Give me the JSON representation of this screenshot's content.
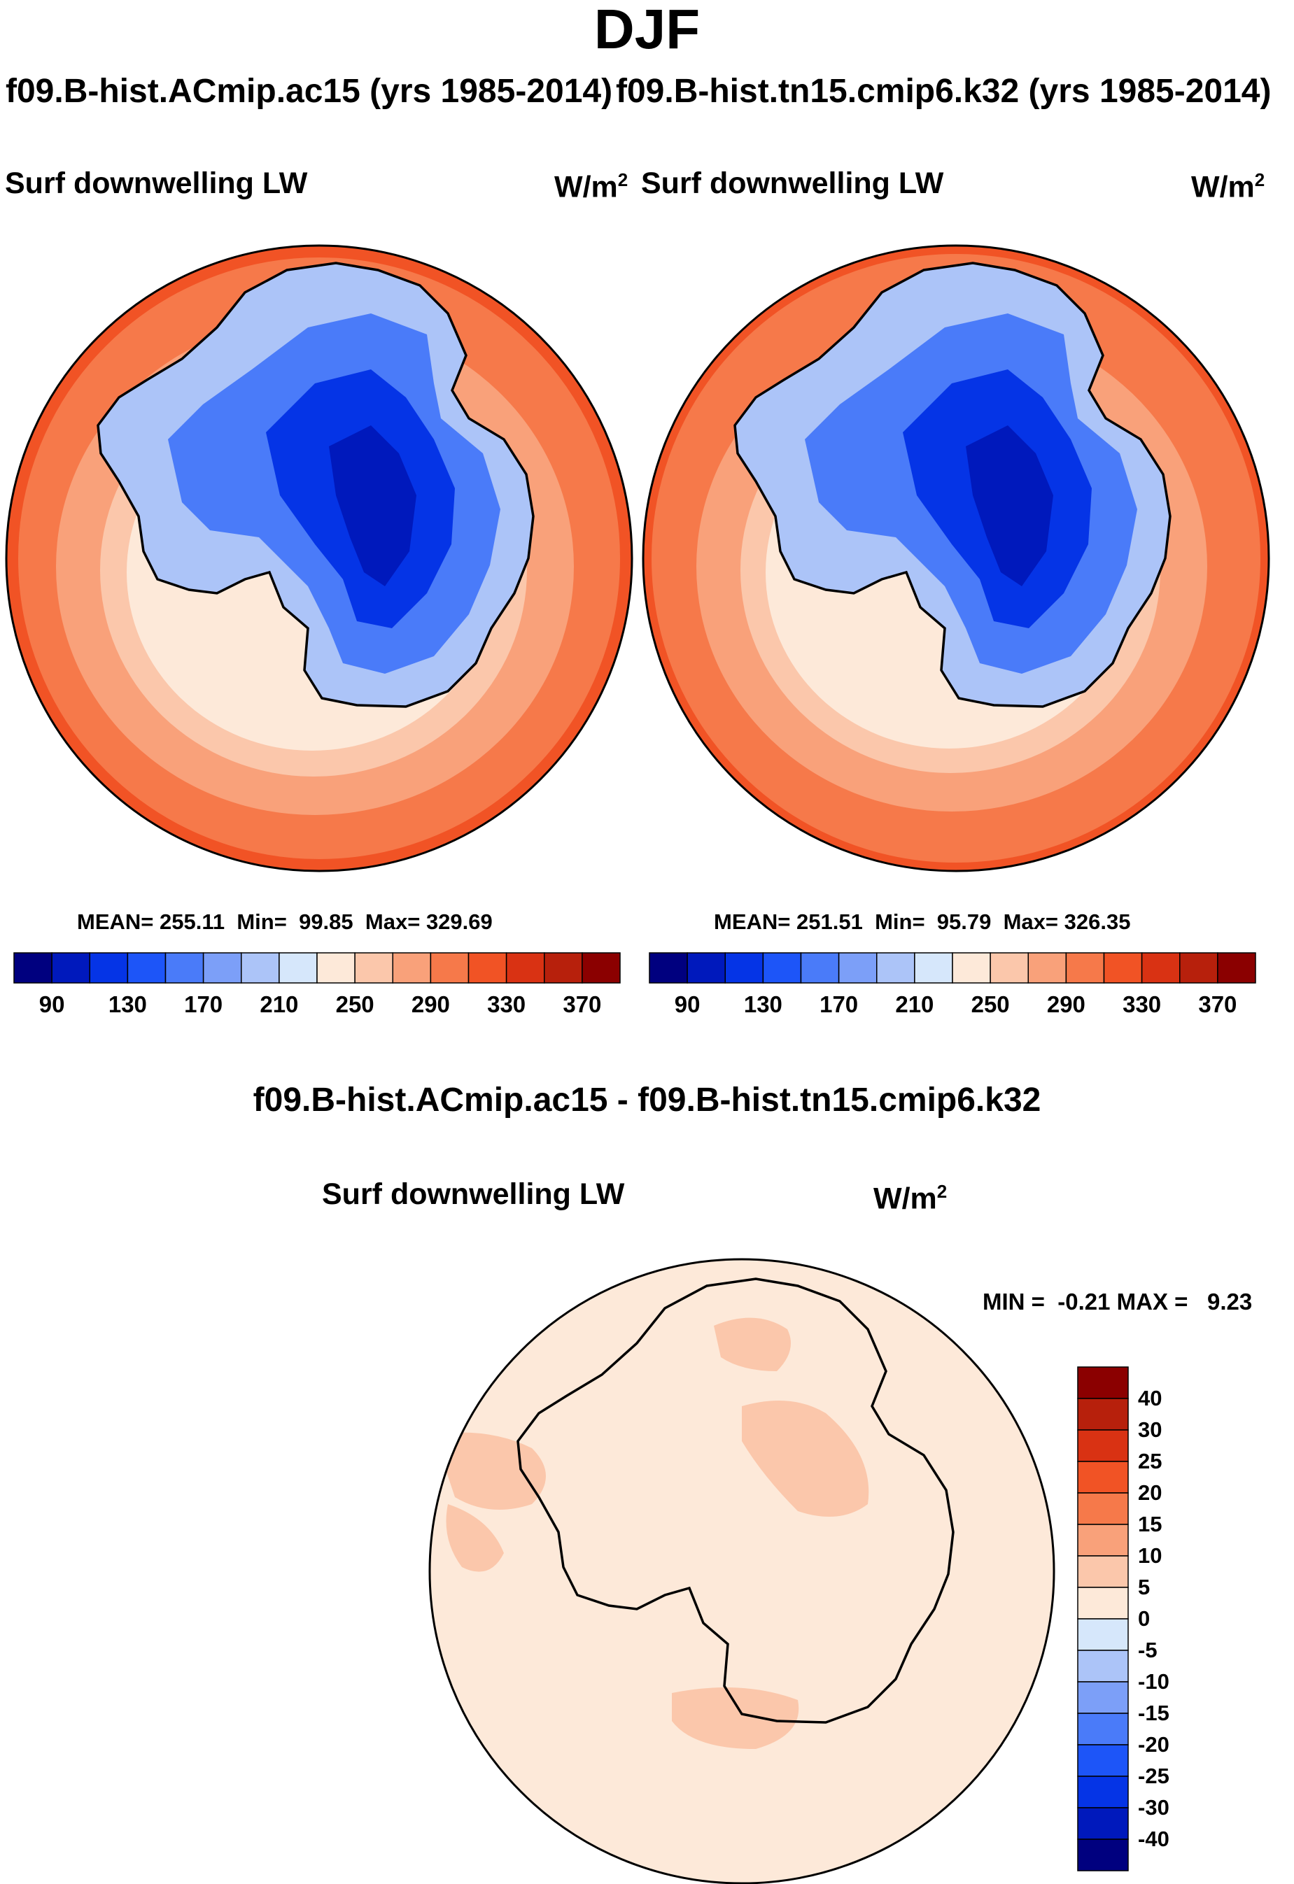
{
  "title": "DJF",
  "panels": [
    {
      "case": "f09.B-hist.ACmip.ac15 (yrs 1985-2014)",
      "variable": "Surf downwelling LW",
      "units_base": "W/m",
      "units_exp": "2",
      "stats": {
        "mean_label": "MEAN=",
        "mean": "255.11",
        "min_label": "Min=",
        "min": "99.85",
        "max_label": "Max=",
        "max": "329.69"
      }
    },
    {
      "case": "f09.B-hist.tn15.cmip6.k32 (yrs 1985-2014)",
      "variable": "Surf downwelling LW",
      "units_base": "W/m",
      "units_exp": "2",
      "stats": {
        "mean_label": "MEAN=",
        "mean": "251.51",
        "min_label": "Min=",
        "min": "95.79",
        "max_label": "Max=",
        "max": "326.35"
      }
    }
  ],
  "difference": {
    "title": "f09.B-hist.ACmip.ac15 - f09.B-hist.tn15.cmip6.k32",
    "variable": "Surf downwelling LW",
    "units_base": "W/m",
    "units_exp": "2",
    "min_label": "MIN =",
    "min": "-0.21",
    "max_label": "MAX =",
    "max": "9.23"
  },
  "colorbar_abs": {
    "colors": [
      "#00007f",
      "#0019bc",
      "#0534e6",
      "#1d55f8",
      "#4a7bf9",
      "#7c9ff8",
      "#acc4f8",
      "#d6e7fb",
      "#fde9d9",
      "#fbc7ab",
      "#f9a17a",
      "#f6794a",
      "#f15325",
      "#d93213",
      "#b7200c",
      "#8b0000"
    ],
    "tick_labels": [
      "90",
      "130",
      "170",
      "210",
      "250",
      "290",
      "330",
      "370"
    ]
  },
  "colorbar_diff": {
    "colors_top_to_bottom": [
      "#8b0000",
      "#b7200c",
      "#d93213",
      "#f15325",
      "#f6794a",
      "#f9a17a",
      "#fbc7ab",
      "#fde9d9",
      "#d6e7fb",
      "#acc4f8",
      "#7c9ff8",
      "#4a7bf9",
      "#1d55f8",
      "#0534e6",
      "#0019bc",
      "#00007f"
    ],
    "tick_labels": [
      "40",
      "30",
      "25",
      "20",
      "15",
      "10",
      "5",
      "0",
      "-5",
      "-10",
      "-15",
      "-20",
      "-25",
      "-30",
      "-40"
    ]
  }
}
